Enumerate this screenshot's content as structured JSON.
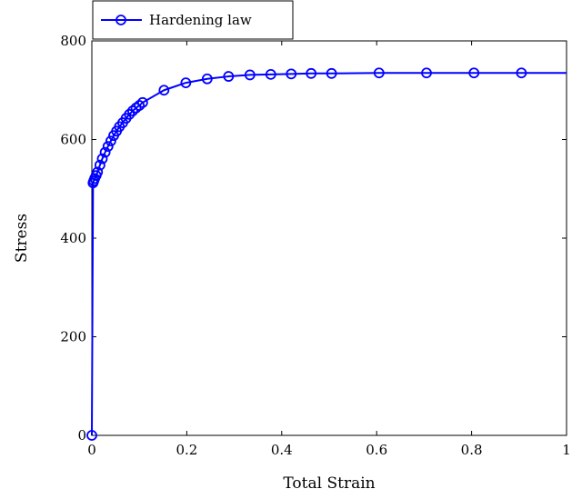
{
  "chart_data": {
    "type": "line",
    "xlabel": "Total Strain",
    "ylabel": "Stress",
    "xlim": [
      0,
      1
    ],
    "ylim": [
      0,
      800
    ],
    "xticks": [
      0,
      0.2,
      0.4,
      0.6,
      0.8,
      1
    ],
    "xtick_labels": [
      "0",
      "0.2",
      "0.4",
      "0.6",
      "0.8",
      "1"
    ],
    "yticks": [
      0,
      200,
      400,
      600,
      800
    ],
    "ytick_labels": [
      "0",
      "200",
      "400",
      "600",
      "800"
    ],
    "grid": false,
    "legend_position": "top-left",
    "series": [
      {
        "name": "Hardening law",
        "color": "#0000ff",
        "marker": "circle",
        "x": [
          0,
          0.0025,
          0.004,
          0.006,
          0.009,
          0.012,
          0.017,
          0.022,
          0.028,
          0.034,
          0.04,
          0.046,
          0.052,
          0.058,
          0.065,
          0.072,
          0.079,
          0.086,
          0.093,
          0.1,
          0.107,
          0.152,
          0.198,
          0.243,
          0.288,
          0.333,
          0.377,
          0.42,
          0.462,
          0.505,
          0.605,
          0.705,
          0.805,
          0.905,
          1.0
        ],
        "y": [
          0,
          512,
          516,
          521,
          527,
          534,
          548,
          561,
          574,
          586,
          597,
          608,
          617,
          626,
          634,
          643,
          651,
          658,
          664,
          669,
          675,
          700,
          715,
          723,
          728,
          731,
          732,
          733,
          734,
          734,
          735,
          735,
          735,
          735,
          735
        ]
      }
    ]
  }
}
